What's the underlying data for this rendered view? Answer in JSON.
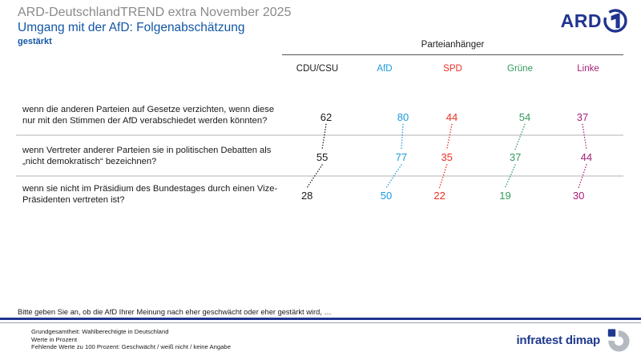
{
  "colors": {
    "brand_navy": "#20348f",
    "title_blue": "#1257a5",
    "supertitle_gray": "#8a8a8a",
    "separator_gray": "#d9d9d9"
  },
  "header": {
    "supertitle": "ARD-DeutschlandTREND extra November 2025",
    "title": "Umgang mit der AfD: Folgenabschätzung",
    "subtitle": "gestärkt"
  },
  "ard_logo": {
    "text": "ARD"
  },
  "chart_data": {
    "type": "table",
    "title": "Umgang mit der AfD: Folgenabschätzung",
    "subtitle": "gestärkt",
    "group_label": "Parteianhänger",
    "unit": "Prozent",
    "columns": [
      {
        "label": "CDU/CSU",
        "color": "#1a1a1a"
      },
      {
        "label": "AfD",
        "color": "#189bdb"
      },
      {
        "label": "SPD",
        "color": "#ed2e24"
      },
      {
        "label": "Grüne",
        "color": "#33995c"
      },
      {
        "label": "Linke",
        "color": "#a62077"
      }
    ],
    "rows": [
      {
        "question_lines": [
          "wenn die anderen Parteien auf Gesetze verzichten, wenn diese",
          "nur mit den Stimmen der AfD verabschiedet werden könnten?"
        ],
        "values": [
          62,
          80,
          44,
          54,
          37
        ]
      },
      {
        "question_lines": [
          "wenn Vertreter anderer Parteien sie in politischen Debatten als",
          "„nicht demokratisch“ bezeichnen?"
        ],
        "values": [
          55,
          77,
          35,
          37,
          44
        ]
      },
      {
        "question_lines": [
          "wenn sie nicht im Präsidium des Bundestages durch einen Vize-",
          "Präsidenten vertreten ist?"
        ],
        "values": [
          28,
          50,
          22,
          19,
          30
        ]
      }
    ]
  },
  "note": "Bitte geben Sie an, ob die AfD Ihrer Meinung nach eher geschwächt oder eher gestärkt wird, …",
  "footer": {
    "lines": [
      "Grundgesamtheit: Wahlberechtigte in Deutschland",
      "Werte in Prozent",
      "Fehlende Werte zu 100 Prozent: Geschwächt / weiß nicht / keine Angabe"
    ],
    "brand": "infratest dimap"
  }
}
